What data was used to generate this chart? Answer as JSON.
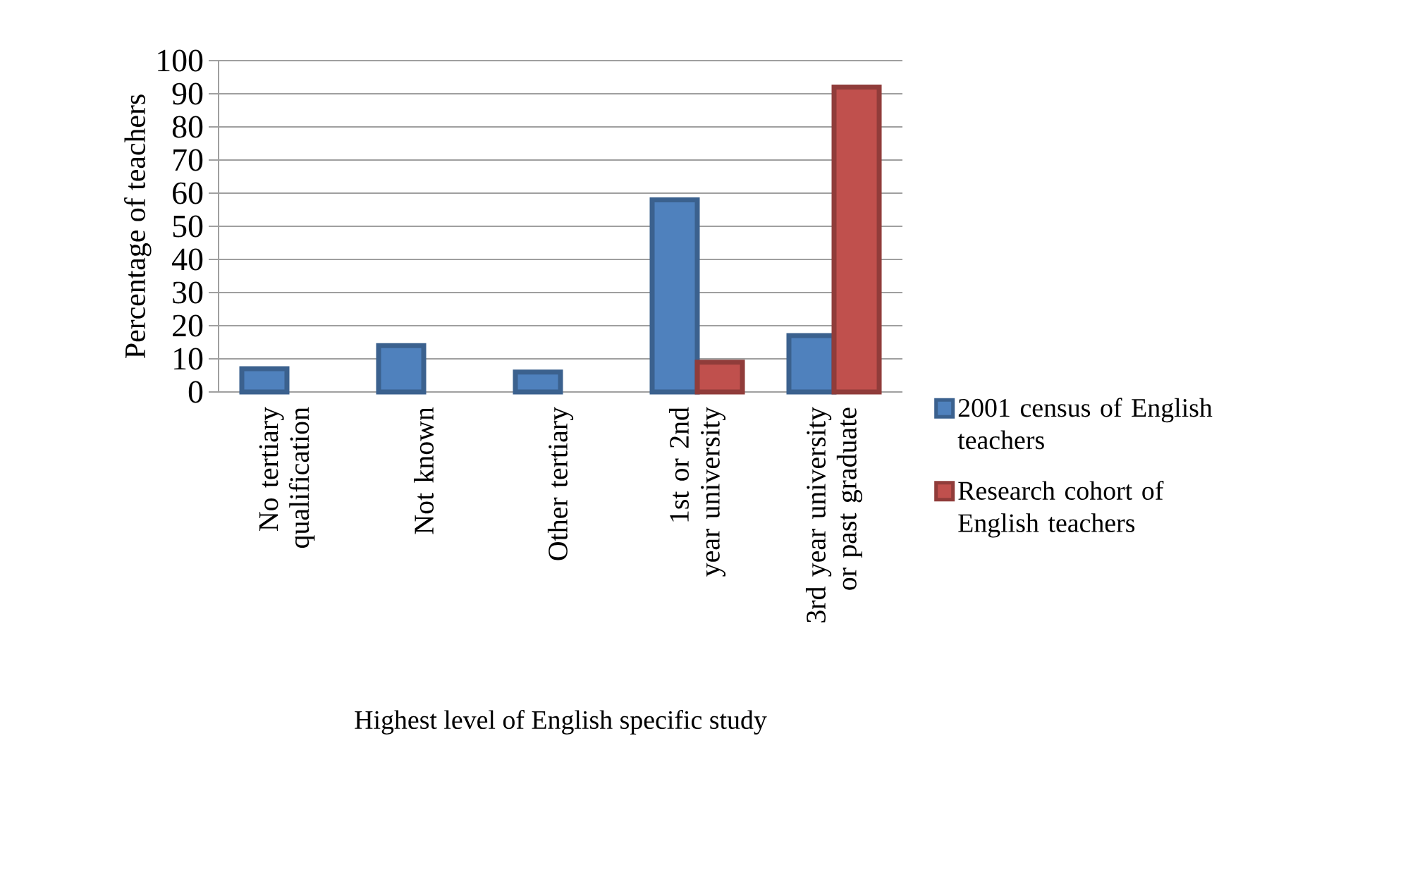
{
  "chart_data": {
    "type": "bar",
    "xlabel": "Highest level of English specific study",
    "ylabel": "Percentage of teachers",
    "categories": [
      "No tertiary qualification",
      "Not known",
      "Other tertiary",
      "1st or 2nd year university",
      "3rd year university or past graduate"
    ],
    "series": [
      {
        "name": "2001 census of English teachers",
        "color": "#4f81bd",
        "values": [
          7,
          14,
          6,
          58,
          17
        ]
      },
      {
        "name": "Research cohort of English teachers",
        "color": "#c0504d",
        "values": [
          null,
          null,
          null,
          9,
          92
        ]
      }
    ],
    "ylim": [
      0,
      100
    ],
    "yticks": [
      0,
      10,
      20,
      30,
      40,
      50,
      60,
      70,
      80,
      90,
      100
    ],
    "grid": "y",
    "legend": "right"
  }
}
